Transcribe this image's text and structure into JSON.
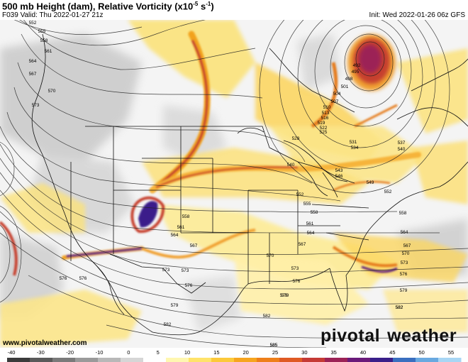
{
  "header": {
    "title_main": "500 mb Height (dam), Relative Vorticity (x10",
    "title_exp": "-5",
    "title_unit": " s",
    "title_unit_exp": "-1",
    "title_close": ")",
    "valid": "F039 Valid: Thu 2022-01-27 21z",
    "init": "Init: Wed 2022-01-26 06z GFS"
  },
  "footer": {
    "url": "www.pivotalweather.com",
    "brand_a": "pivotal",
    "brand_b": "weather"
  },
  "colorbar": {
    "ticks": [
      "-40",
      "-30",
      "-20",
      "-10",
      "0",
      "5",
      "10",
      "15",
      "20",
      "25",
      "30",
      "35",
      "40",
      "45",
      "50",
      "55"
    ],
    "colors": [
      "#3b3b3b",
      "#5a5a5a",
      "#7a7a7a",
      "#9a9a9a",
      "#b8b8b8",
      "#d6d6d6",
      "#ffffff",
      "#fff7b0",
      "#ffe36a",
      "#fcc93a",
      "#f6a51f",
      "#ee7f1a",
      "#df5a24",
      "#c53a35",
      "#9c2256",
      "#6a1a7a",
      "#3a1f8a",
      "#3a6fc0",
      "#69a9e0",
      "#a8d6f4"
    ]
  },
  "map": {
    "contour_labels": [
      {
        "t": "552"
      },
      {
        "t": "555"
      },
      {
        "t": "558"
      },
      {
        "t": "561"
      },
      {
        "t": "564"
      },
      {
        "t": "567"
      },
      {
        "t": "570"
      },
      {
        "t": "573"
      },
      {
        "t": "576"
      },
      {
        "t": "576"
      },
      {
        "t": "573"
      },
      {
        "t": "573"
      },
      {
        "t": "579"
      },
      {
        "t": "582"
      },
      {
        "t": "576"
      },
      {
        "t": "579"
      },
      {
        "t": "582"
      },
      {
        "t": "585"
      },
      {
        "t": "582"
      },
      {
        "t": "492"
      },
      {
        "t": "495"
      },
      {
        "t": "498"
      },
      {
        "t": "501"
      },
      {
        "t": "504"
      },
      {
        "t": "507"
      },
      {
        "t": "510"
      },
      {
        "t": "513"
      },
      {
        "t": "516"
      },
      {
        "t": "519"
      },
      {
        "t": "522"
      },
      {
        "t": "525"
      },
      {
        "t": "528"
      },
      {
        "t": "531"
      },
      {
        "t": "534"
      },
      {
        "t": "537"
      },
      {
        "t": "540"
      },
      {
        "t": "540"
      },
      {
        "t": "543"
      },
      {
        "t": "546"
      },
      {
        "t": "549"
      },
      {
        "t": "552"
      },
      {
        "t": "552"
      },
      {
        "t": "555"
      },
      {
        "t": "558"
      },
      {
        "t": "558"
      },
      {
        "t": "558"
      },
      {
        "t": "561"
      },
      {
        "t": "561"
      },
      {
        "t": "564"
      },
      {
        "t": "564"
      },
      {
        "t": "564"
      },
      {
        "t": "567"
      },
      {
        "t": "567"
      },
      {
        "t": "567"
      },
      {
        "t": "570"
      },
      {
        "t": "570"
      },
      {
        "t": "573"
      },
      {
        "t": "573"
      },
      {
        "t": "576"
      },
      {
        "t": "576"
      },
      {
        "t": "579"
      },
      {
        "t": "579"
      },
      {
        "t": "582"
      },
      {
        "t": "585"
      }
    ]
  }
}
